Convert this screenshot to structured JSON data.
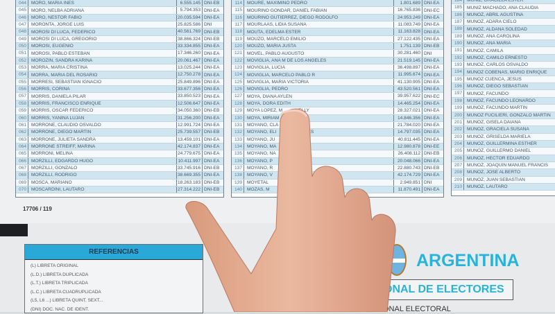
{
  "left_table": [
    [
      "044",
      "MORO, MARIA INES",
      "6.555.145",
      "DNI-EB"
    ],
    [
      "045",
      "MORO, NELBA ADRIANA",
      "5.794.353",
      "DNI-EA"
    ],
    [
      "046",
      "MORO, NESTOR FABIO",
      "20.035.594",
      "DNI-EA"
    ],
    [
      "047",
      "MORONTA, JORGE LUIS",
      "25.825.586",
      "DNI"
    ],
    [
      "048",
      "MOROSI DI LUCA, FEDERICO",
      "40.561.769",
      "DNI-EB"
    ],
    [
      "049",
      "MOROSI DI LUCA, GREGORIO",
      "38.866.324",
      "DNI-EB"
    ],
    [
      "050",
      "MOROSI, EUGENIO",
      "33.334.855",
      "DNI-EA"
    ],
    [
      "051",
      "MOROSI, PABLO ESTEBAN",
      "17.346.260",
      "DNI-EA"
    ],
    [
      "052",
      "MOROZIN, SANDRA KARINA",
      "20.061.467",
      "DNI-EA"
    ],
    [
      "053",
      "MORRA, MARIA CRISTINA",
      "13.025.244",
      "DNI-EA"
    ],
    [
      "054",
      "MORRA, MARIA DEL ROSARIO",
      "12.750.278",
      "DNI-EA"
    ],
    [
      "055",
      "MORRESI, SEBASTIAN IGNACIO",
      "25.849.896",
      "DNI-EA"
    ],
    [
      "056",
      "MORRIS, CORINA",
      "33.677.356",
      "DNI-EA"
    ],
    [
      "057",
      "MORRIS, DANIELA PILAR",
      "33.850.523",
      "DNI-EA"
    ],
    [
      "058",
      "MORRIS, FRANCISCO ENRIQUE",
      "12.506.647",
      "DNI-EA"
    ],
    [
      "059",
      "MORRIS, OSCAR FEDERICO",
      "34.050.360",
      "DNI-EB"
    ],
    [
      "060",
      "MORRIS, YANINA LUJAN",
      "31.256.200",
      "DNI-EA"
    ],
    [
      "061",
      "MORRONE, CLAUDIO OSVALDO",
      "12.991.724",
      "DNI-EA"
    ],
    [
      "062",
      "MORRONE, DIEGO MARTIN",
      "25.739.557",
      "DNI-EB"
    ],
    [
      "063",
      "MORRONE, JULIETA SANDRA",
      "13.459.101",
      "DNI-EA"
    ],
    [
      "064",
      "MORRONE STREIFF, MARINA",
      "42.174.837",
      "DNI-EA"
    ],
    [
      "065",
      "MORRONI, MELINA",
      "24.779.675",
      "DNI-EA"
    ],
    [
      "066",
      "MORZILLI, EDGARDO HUGO",
      "10.411.997",
      "DNI-EA"
    ],
    [
      "067",
      "MORZILLI, GONZALO",
      "33.745.916",
      "DNI-EB"
    ],
    [
      "068",
      "MORZILLI, RODRIGO",
      "38.669.355",
      "DNI-EA"
    ],
    [
      "069",
      "MOSCA, MARIANO",
      "18.263.183",
      "DNI-EB"
    ],
    [
      "070",
      "MOSCARDINI, LAUTARO",
      "27.314.222",
      "DNI-EB"
    ]
  ],
  "middle_table": [
    [
      "114",
      "MOURE, MAXIMINO PEDRO",
      "1.801.689",
      "DNI-EA"
    ],
    [
      "115",
      "MOURIÑO GONDAR, DANIEL FABIAN",
      "16.765.836",
      "DNI-EC"
    ],
    [
      "116",
      "MOURIÑO GUTIERREZ, DIEGO RODOLFO",
      "24.953.249",
      "DNI-EA"
    ],
    [
      "117",
      "MOURLAAS, LIDIA SUSANA",
      "11.083.749",
      "DNI-EA"
    ],
    [
      "118",
      "MOUTA, EDELMA ESTER",
      "11.163.828",
      "DNI-EA"
    ],
    [
      "119",
      "MOUZO, MARCELO EMILIO",
      "27.122.435",
      "DNI-EA"
    ],
    [
      "120",
      "MOUZO, MARIA JUSTA",
      "1.751.139",
      "DNI-EB"
    ],
    [
      "121",
      "MOVEL, PABLO AUGUSTO",
      "30.281.460",
      "DNI"
    ],
    [
      "122",
      "MOVIGLIA, ANA M DE LOS ANGELES",
      "21.519.145",
      "DNI-EA"
    ],
    [
      "123",
      "MOVIGLIA, LUCIA",
      "36.498.897",
      "DNI-EA"
    ],
    [
      "124",
      "MOVIGLIA, MARCELO PABLO R",
      "11.995.674",
      "DNI-EA"
    ],
    [
      "125",
      "MOVIGLIA, MARIA VICTORIA",
      "41.130.905",
      "DNI-EA"
    ],
    [
      "126",
      "MOVIGLIA, PEDRO",
      "43.520.561",
      "DNI-EA"
    ],
    [
      "127",
      "MOYA, DIANA AYLEN",
      "39.957.622",
      "DNI-EC"
    ],
    [
      "128",
      "MOYA, DORA EDITH",
      "14.465.254",
      "DNI-EA"
    ],
    [
      "129",
      "MOYA LOPEZ, M          NELLY",
      "28.327.021",
      "DNI-EA"
    ],
    [
      "130",
      "MOYA, MIRIAM           TH",
      "14.846.356",
      "DNI-EA"
    ],
    [
      "131",
      "MOYANO, CLA            IMO",
      "21.784.020",
      "DNI-EA"
    ],
    [
      "132",
      "MOYANO, ELI            ERCEDES",
      "14.797.035",
      "DNI-EA"
    ],
    [
      "133",
      "MOYANO, JU",
      "40.811.445",
      "DNI-EA"
    ],
    [
      "134",
      "MOYANO, MA",
      "12.980.878",
      "DNI-EE"
    ],
    [
      "135",
      "MOYANO, NA             NA",
      "26.408.112",
      "DNI-EB"
    ],
    [
      "136",
      "MOYANO, P              ANDRA",
      "20.048.066",
      "DNI-EA"
    ],
    [
      "137",
      "MOYANO, R",
      "22.880.743",
      "DNI-EB"
    ],
    [
      "138",
      "MOYANO, V",
      "42.174.729",
      "DNI-EA"
    ],
    [
      "139",
      "MOYETAL",
      "2.949.851",
      "DNI"
    ],
    [
      "140",
      "MOZAS, M",
      "11.870.491",
      "DNI-EA"
    ]
  ],
  "right_table": [
    [
      "184",
      "MUÑIZ, GRACIELA ESTER"
    ],
    [
      "185",
      "MUÑIZ MACHADO, ANA CLAUDIA"
    ],
    [
      "186",
      "MUÑOZ, ABRIL AGUSTINA"
    ],
    [
      "187",
      "MUÑOZ, ADARA CIELO"
    ],
    [
      "188",
      "MUÑOZ, ALDANA SOLEDAD"
    ],
    [
      "189",
      "MUÑOZ, ANA CAROLINA"
    ],
    [
      "190",
      "MUÑOZ, ANA MARIA"
    ],
    [
      "191",
      "MUÑOZ, CAMILA"
    ],
    [
      "192",
      "MUÑOZ, CAMILO ERNESTO"
    ],
    [
      "193",
      "MUÑOZ, CARLOS OSVALDO"
    ],
    [
      "194",
      "MUÑOZ COBEÑAS, MARIO ENRIQUE"
    ],
    [
      "195",
      "MUÑOZ CUENCA, JESUS"
    ],
    [
      "196",
      "MUÑOZ, DIEGO SEBASTIAN"
    ],
    [
      "197",
      "MUÑOZ, FACUNDO"
    ],
    [
      "198",
      "MUÑOZ, FACUNDO LEONARDO"
    ],
    [
      "199",
      "MUÑOZ, FACUNDO MARTIN"
    ],
    [
      "200",
      "MUÑOZ FUCILIERI, GONZALO MARTIN"
    ],
    [
      "201",
      "MUÑOZ, GISELA DAIANA"
    ],
    [
      "202",
      "MUÑOZ, GRACIELA SUSANA"
    ],
    [
      "203",
      "MUÑOZ, GRISELDA MARIELA"
    ],
    [
      "204",
      "MUÑOZ, GUILLERMINA ESTHER"
    ],
    [
      "205",
      "MUÑOZ, GUILLERMO DANIEL"
    ],
    [
      "206",
      "MUÑOZ, HECTOR EDUARDO"
    ],
    [
      "207",
      "MUÑOZ, JOAQUIN MANUEL FRANCIS"
    ],
    [
      "208",
      "MUÑOZ, JOSE ALBERTO"
    ],
    [
      "209",
      "MUÑOZ, JUAN SEBASTIAN"
    ],
    [
      "210",
      "MUÑOZ, LAUTARO"
    ]
  ],
  "page_number": "17706 / 119",
  "references": {
    "title": "REFERENCIAS",
    "items": [
      "(L) LIBRETA ORIGINAL",
      "(L.D.) LIBRETA DUPLICADA",
      "(L.T.) LIBRETA TRIPLICADA",
      "(L.C.) LIBRETA CUADRUPLICADA",
      "(L5, L6 ...) LIBRETA QUINT. SEXT...",
      "(DNI) DOC. NAC. DE IDENT."
    ]
  },
  "header": {
    "country": "ARGENTINA",
    "registry": "ONAL DE ELECTORES",
    "sub": "ONAL ELECTORAL"
  },
  "colors": {
    "accent": "#2aa8d8",
    "stripe": "#cfe6f1",
    "skin": "#e3a88c"
  }
}
